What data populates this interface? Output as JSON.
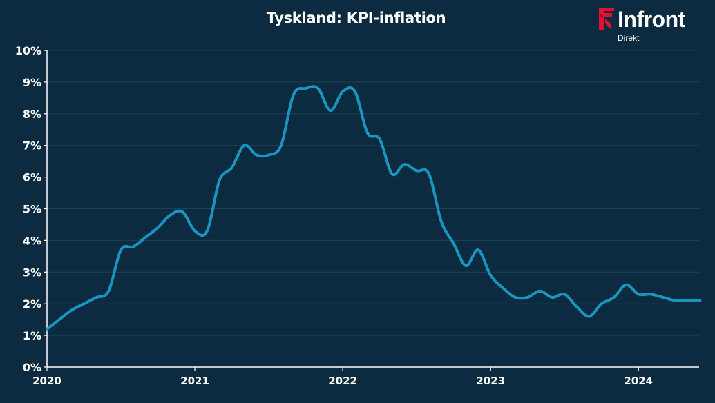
{
  "header": {
    "title": "Tyskland: KPI-inflation"
  },
  "logo": {
    "name": "Infront",
    "subtitle": "Direkt",
    "accent_color": "#e8102e"
  },
  "chart_data": {
    "type": "line",
    "title": "Tyskland: KPI-inflation",
    "xlabel": "",
    "ylabel": "",
    "x_ticks": [
      "2020",
      "2021",
      "2022",
      "2023",
      "2024"
    ],
    "y_ticks": [
      "0%",
      "1%",
      "2%",
      "3%",
      "4%",
      "5%",
      "6%",
      "7%",
      "8%",
      "9%",
      "10%"
    ],
    "ylim": [
      0,
      10
    ],
    "xlim": [
      "2020-01",
      "2024-06"
    ],
    "grid": true,
    "line_color": "#1a95c0",
    "series": [
      {
        "x": [
          "2020-01",
          "2020-02",
          "2020-03",
          "2020-04",
          "2020-05",
          "2020-06",
          "2020-07",
          "2020-08",
          "2020-09",
          "2020-10",
          "2020-11",
          "2020-12",
          "2021-01",
          "2021-02",
          "2021-03",
          "2021-04",
          "2021-05",
          "2021-06",
          "2021-07",
          "2021-08",
          "2021-09",
          "2021-10",
          "2021-11",
          "2021-12",
          "2022-01",
          "2022-02",
          "2022-03",
          "2022-04",
          "2022-05",
          "2022-06",
          "2022-07",
          "2022-08",
          "2022-09",
          "2022-10",
          "2022-11",
          "2022-12",
          "2023-01",
          "2023-02",
          "2023-03",
          "2023-04",
          "2023-05",
          "2023-06",
          "2023-07",
          "2023-08",
          "2023-09",
          "2023-10",
          "2023-11",
          "2023-12",
          "2024-01",
          "2024-02",
          "2024-03",
          "2024-04",
          "2024-05",
          "2024-06"
        ],
        "values": [
          1.2,
          1.5,
          1.8,
          2.0,
          2.2,
          2.4,
          3.7,
          3.8,
          4.1,
          4.4,
          4.8,
          4.9,
          4.3,
          4.3,
          5.9,
          6.3,
          7.0,
          6.7,
          6.7,
          7.0,
          8.6,
          8.8,
          8.8,
          8.1,
          8.7,
          8.7,
          7.4,
          7.2,
          6.1,
          6.4,
          6.2,
          6.1,
          4.6,
          3.9,
          3.2,
          3.7,
          2.9,
          2.5,
          2.2,
          2.2,
          2.4,
          2.2,
          2.3,
          1.9,
          1.6,
          2.0,
          2.2,
          2.6,
          2.3,
          2.3,
          2.2,
          2.1,
          2.1,
          2.1
        ]
      }
    ]
  }
}
